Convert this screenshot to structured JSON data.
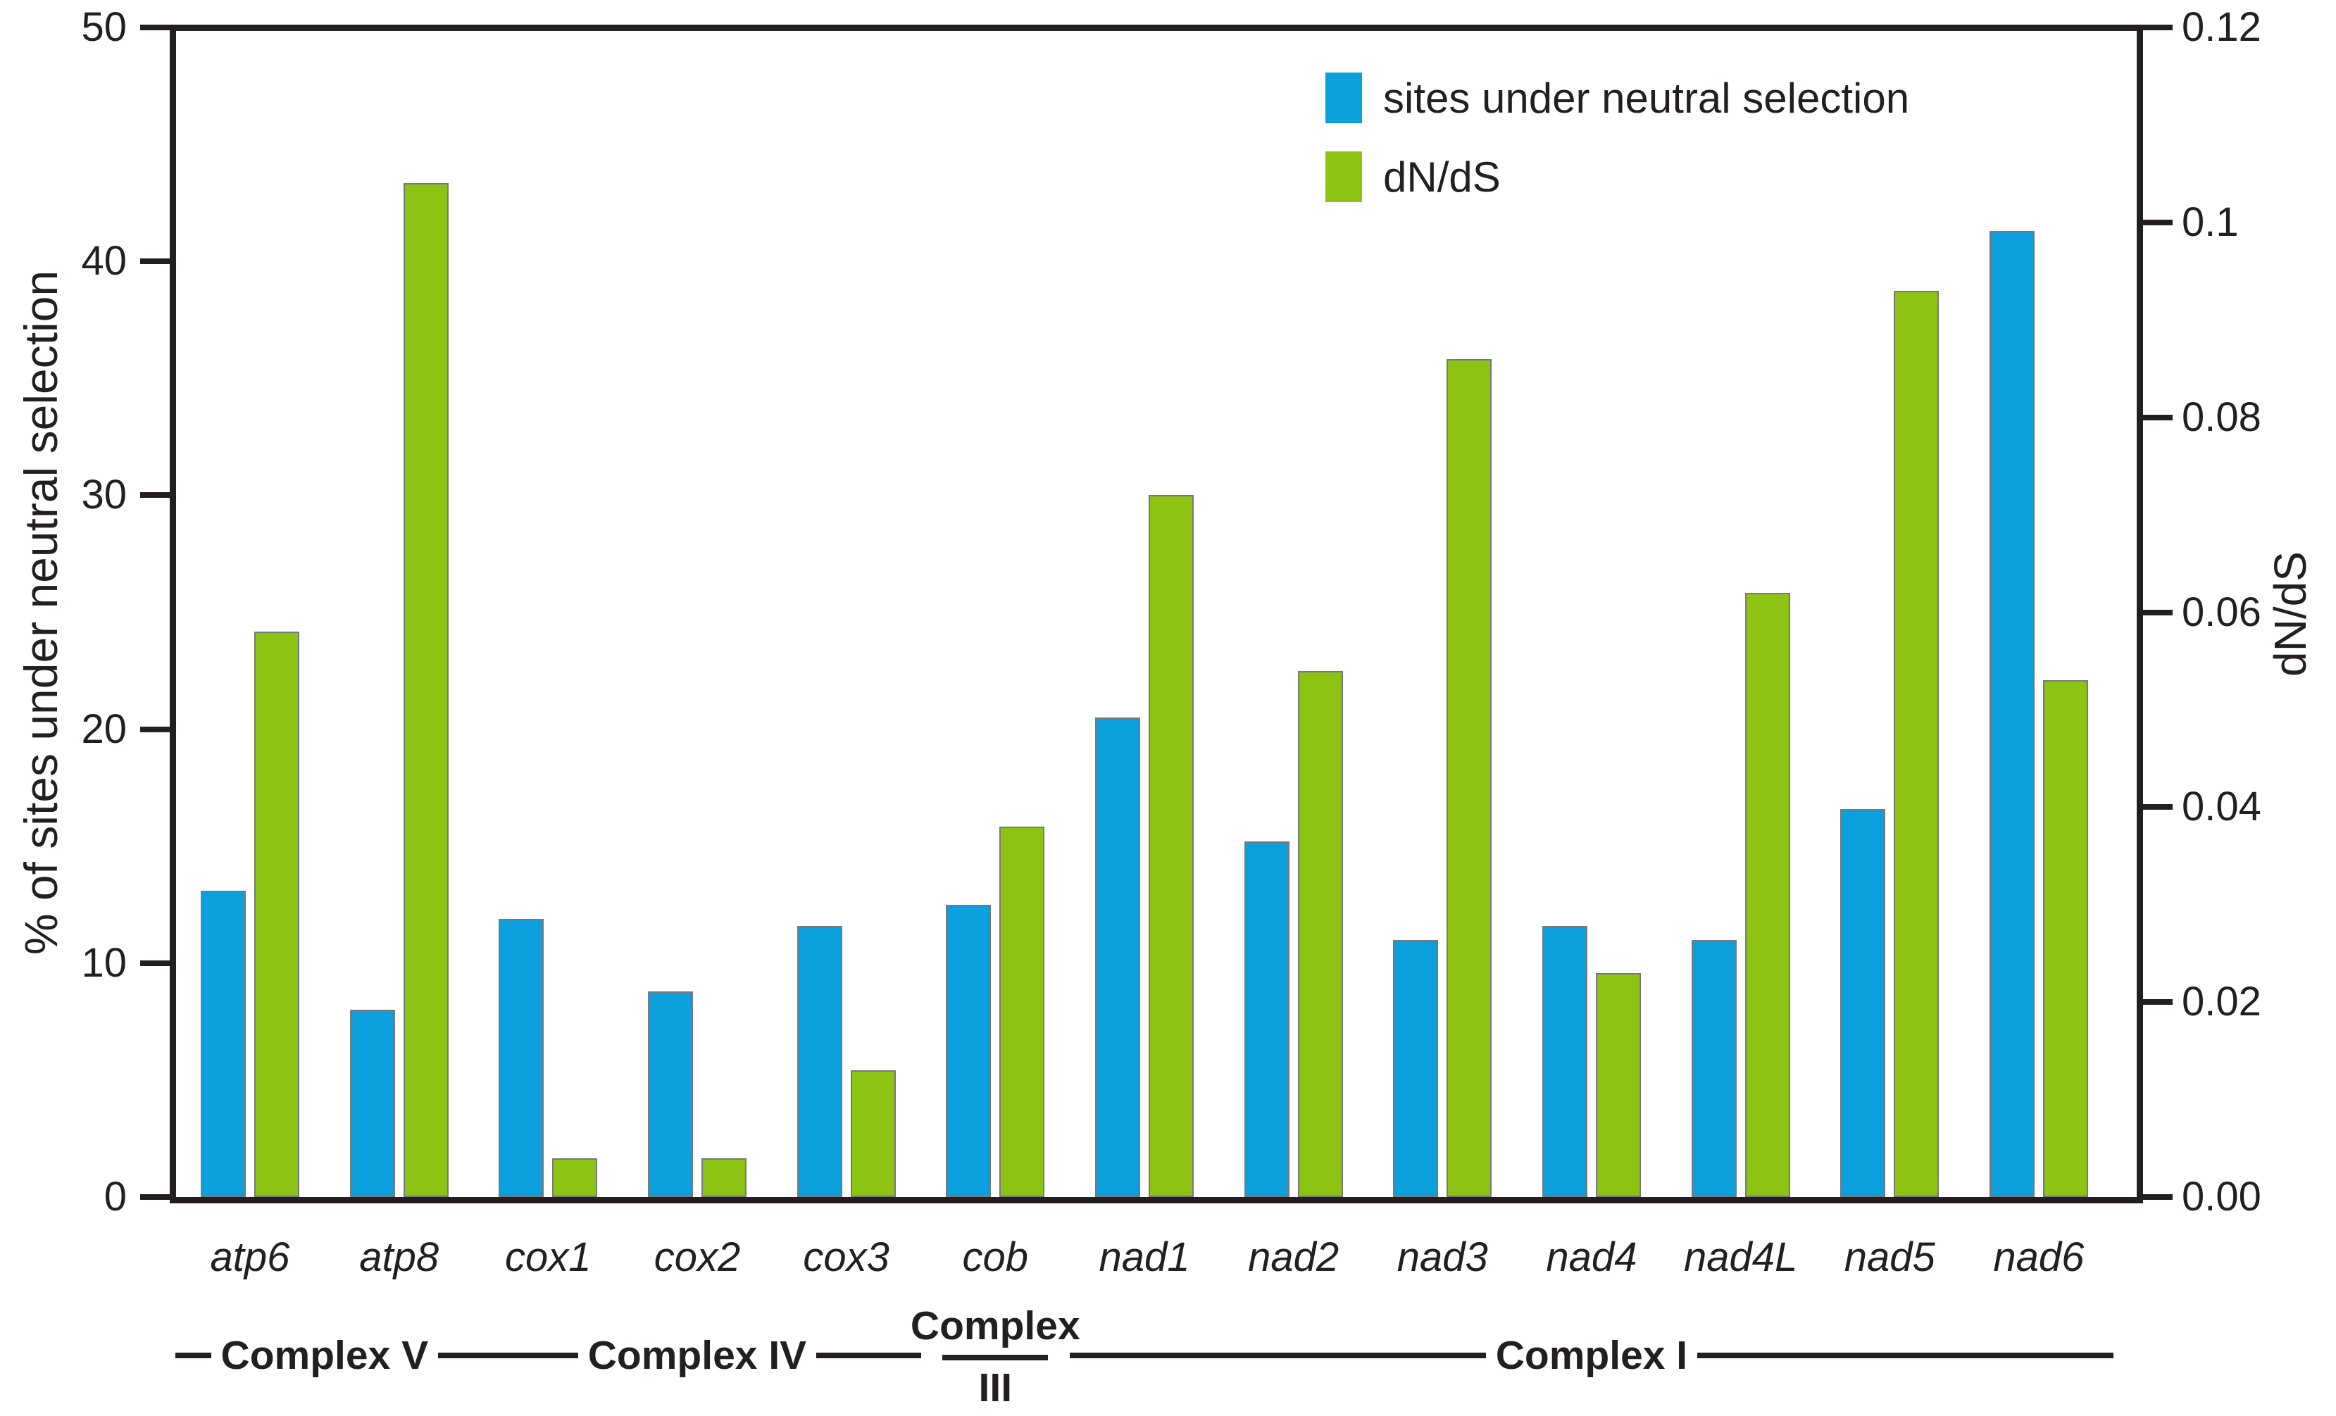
{
  "figure": {
    "background": "#ffffff",
    "axis_color": "#231F20",
    "text_color": "#231F20"
  },
  "legend": {
    "items": [
      {
        "label": "sites under neutral selection",
        "color": "#0C9FDE",
        "icon": "blue-square-swatch"
      },
      {
        "label": "dN/dS",
        "color": "#8DC414",
        "icon": "green-square-swatch"
      }
    ]
  },
  "left_axis": {
    "label": "% of sites under neutral selection",
    "ticks": [
      "0",
      "10",
      "20",
      "30",
      "40",
      "50"
    ]
  },
  "right_axis": {
    "label": "dN/dS",
    "ticks": [
      "0.00",
      "0.02",
      "0.04",
      "0.06",
      "0.08",
      "0.1",
      "0.12"
    ]
  },
  "chart_data": {
    "type": "bar",
    "title": "",
    "categories": [
      "atp6",
      "atp8",
      "cox1",
      "cox2",
      "cox3",
      "cob",
      "nad1",
      "nad2",
      "nad3",
      "nad4",
      "nad4L",
      "nad5",
      "nad6"
    ],
    "series": [
      {
        "name": "sites under neutral selection",
        "axis": "left",
        "color": "#0C9FDE",
        "values": [
          13.1,
          8.0,
          11.9,
          8.8,
          11.6,
          12.5,
          20.5,
          15.2,
          11.0,
          11.6,
          11.0,
          16.6,
          41.3
        ]
      },
      {
        "name": "dN/dS",
        "axis": "right",
        "color": "#8DC414",
        "values": [
          0.058,
          0.104,
          0.004,
          0.004,
          0.013,
          0.038,
          0.072,
          0.054,
          0.086,
          0.023,
          0.062,
          0.093,
          0.053
        ]
      }
    ],
    "xlabel": "",
    "ylabel_left": "% of sites under neutral selection",
    "ylabel_right": "dN/dS",
    "ylim_left": [
      0,
      50
    ],
    "ylim_right": [
      0,
      0.12
    ],
    "grid": false,
    "legend_position": "top-right",
    "complex_groups": [
      {
        "label": "Complex V",
        "from": "atp6",
        "to": "atp8",
        "stacked": false
      },
      {
        "label": "Complex IV",
        "from": "cox1",
        "to": "cox3",
        "stacked": false
      },
      {
        "label": "Complex III",
        "line1": "Complex",
        "line2": "III",
        "from": "cob",
        "to": "cob",
        "stacked": true
      },
      {
        "label": "Complex I",
        "from": "nad1",
        "to": "nad6",
        "stacked": false
      }
    ]
  }
}
